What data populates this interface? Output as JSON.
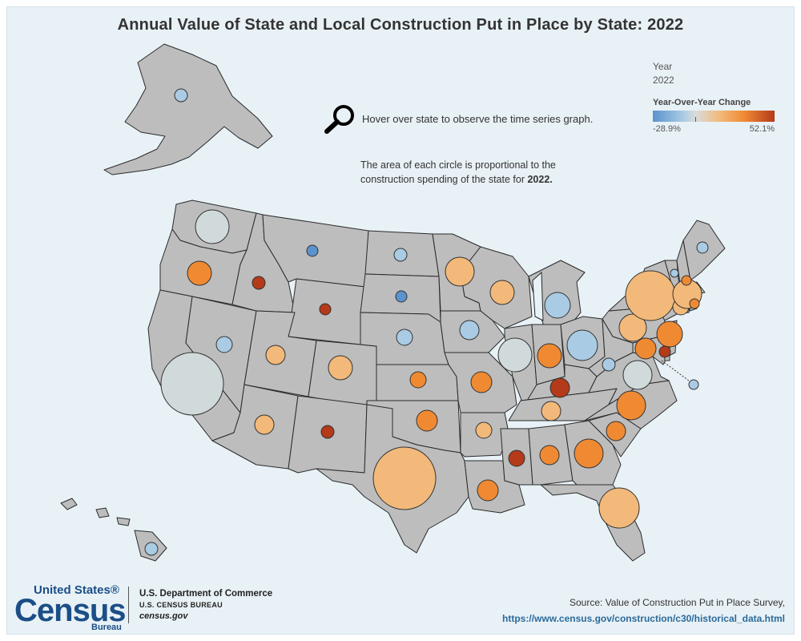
{
  "title": "Annual Value of State and Local Construction Put in Place by State: 2022",
  "filters": {
    "year_label": "Year",
    "year_value": "2022"
  },
  "legend": {
    "title": "Year-Over-Year Change",
    "min_label": "-28.9%",
    "max_label": "52.1%",
    "min_value": -28.9,
    "max_value": 52.1
  },
  "hint": {
    "icon": "magnifier-icon",
    "text": "Hover over state to observe the time series graph."
  },
  "note": {
    "text": "The area of each circle is proportional to the construction spending of the state for ",
    "year": "2022."
  },
  "footer": {
    "census_line1": "United States®",
    "census_line2": "Census",
    "census_line3": "Bureau",
    "commerce_line1": "U.S. Department of Commerce",
    "commerce_line2": "U.S. CENSUS BUREAU",
    "commerce_line3": "census.gov",
    "source_text": "Source: Value of Construction Put in Place Survey,",
    "source_link": "https://www.census.gov/construction/c30/historical_data.html"
  },
  "colors": {
    "state_fill": "#bdbdbd",
    "background": "#e8f1f6",
    "blue": "#5b93cc",
    "light_blue": "#a9cbe3",
    "neutral": "#d0dadb",
    "light_orange": "#f2b97a",
    "orange": "#ef8a33",
    "dark_orange": "#b43a1a"
  },
  "chart_data": {
    "type": "bubble-map",
    "title": "Annual Value of State and Local Construction Put in Place by State: 2022",
    "size_metric": "construction spending 2022 (relative)",
    "color_metric": "Year-Over-Year Change (%)",
    "color_range": [
      -28.9,
      52.1
    ],
    "states": [
      {
        "state": "WA",
        "size": 1.0,
        "color": "neutral"
      },
      {
        "state": "OR",
        "size": 0.52,
        "color": "orange"
      },
      {
        "state": "CA",
        "size": 3.1,
        "color": "neutral"
      },
      {
        "state": "NV",
        "size": 0.26,
        "color": "light_blue"
      },
      {
        "state": "ID",
        "size": 0.16,
        "color": "dark_orange"
      },
      {
        "state": "MT",
        "size": 0.1,
        "color": "blue"
      },
      {
        "state": "WY",
        "size": 0.1,
        "color": "dark_orange"
      },
      {
        "state": "UT",
        "size": 0.36,
        "color": "light_orange"
      },
      {
        "state": "CO",
        "size": 0.55,
        "color": "light_orange"
      },
      {
        "state": "AZ",
        "size": 0.38,
        "color": "light_orange"
      },
      {
        "state": "NM",
        "size": 0.15,
        "color": "dark_orange"
      },
      {
        "state": "ND",
        "size": 0.16,
        "color": "light_blue"
      },
      {
        "state": "SD",
        "size": 0.13,
        "color": "blue"
      },
      {
        "state": "NE",
        "size": 0.22,
        "color": "light_blue"
      },
      {
        "state": "KS",
        "size": 0.25,
        "color": "orange"
      },
      {
        "state": "OK",
        "size": 0.4,
        "color": "orange"
      },
      {
        "state": "TX",
        "size": 3.1,
        "color": "light_orange"
      },
      {
        "state": "MN",
        "size": 0.78,
        "color": "light_orange"
      },
      {
        "state": "IA",
        "size": 0.32,
        "color": "light_blue"
      },
      {
        "state": "MO",
        "size": 0.4,
        "color": "orange"
      },
      {
        "state": "AR",
        "size": 0.22,
        "color": "light_orange"
      },
      {
        "state": "LA",
        "size": 0.45,
        "color": "orange"
      },
      {
        "state": "WI",
        "size": 0.56,
        "color": "light_orange"
      },
      {
        "state": "IL",
        "size": 1.0,
        "color": "neutral"
      },
      {
        "state": "MI",
        "size": 0.64,
        "color": "light_blue"
      },
      {
        "state": "IN",
        "size": 0.52,
        "color": "orange"
      },
      {
        "state": "OH",
        "size": 0.9,
        "color": "light_blue"
      },
      {
        "state": "KY",
        "size": 0.32,
        "color": "dark_orange"
      },
      {
        "state": "TN",
        "size": 0.36,
        "color": "light_orange"
      },
      {
        "state": "MS",
        "size": 0.22,
        "color": "dark_orange"
      },
      {
        "state": "AL",
        "size": 0.32,
        "color": "orange"
      },
      {
        "state": "GA",
        "size": 0.75,
        "color": "orange"
      },
      {
        "state": "FL",
        "size": 1.6,
        "color": "light_orange"
      },
      {
        "state": "SC",
        "size": 0.36,
        "color": "orange"
      },
      {
        "state": "NC",
        "size": 0.75,
        "color": "orange"
      },
      {
        "state": "VA",
        "size": 0.72,
        "color": "neutral"
      },
      {
        "state": "WV",
        "size": 0.14,
        "color": "light_blue"
      },
      {
        "state": "PA",
        "size": 0.72,
        "color": "light_orange"
      },
      {
        "state": "NY",
        "size": 2.2,
        "color": "light_orange"
      },
      {
        "state": "NJ",
        "size": 0.62,
        "color": "orange"
      },
      {
        "state": "MD",
        "size": 0.4,
        "color": "orange"
      },
      {
        "state": "DE",
        "size": 0.1,
        "color": "dark_orange"
      },
      {
        "state": "DC",
        "size": 0.09,
        "color": "light_blue"
      },
      {
        "state": "CT",
        "size": 0.26,
        "color": "light_orange"
      },
      {
        "state": "MA",
        "size": 0.8,
        "color": "light_orange"
      },
      {
        "state": "RI",
        "size": 0.1,
        "color": "orange"
      },
      {
        "state": "VT",
        "size": 0.07,
        "color": "light_blue"
      },
      {
        "state": "NH",
        "size": 0.1,
        "color": "orange"
      },
      {
        "state": "ME",
        "size": 0.12,
        "color": "light_blue"
      },
      {
        "state": "AK",
        "size": 0.17,
        "color": "light_blue"
      },
      {
        "state": "HI",
        "size": 0.17,
        "color": "light_blue"
      }
    ]
  }
}
